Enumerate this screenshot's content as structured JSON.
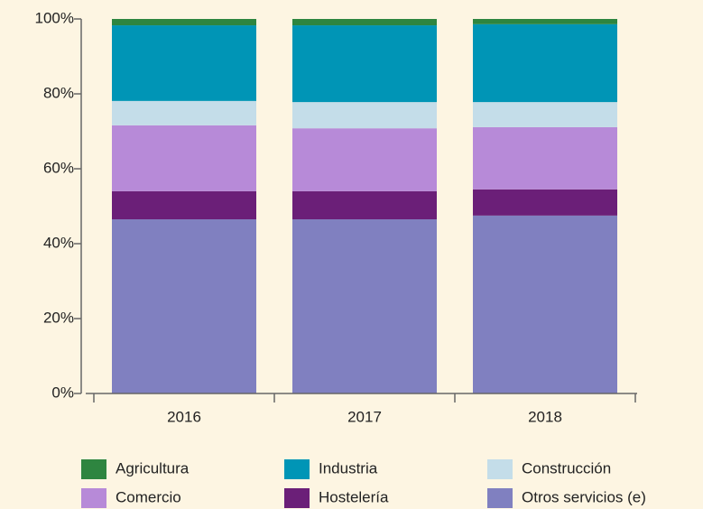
{
  "chart_data": {
    "type": "stacked_bar",
    "categories": [
      "2016",
      "2017",
      "2018"
    ],
    "series": [
      {
        "name": "Agricultura",
        "color": "#2e8540",
        "values": [
          1.7,
          1.7,
          1.4
        ]
      },
      {
        "name": "Industria",
        "color": "#0095b6",
        "values": [
          20.2,
          20.5,
          20.8
        ]
      },
      {
        "name": "Construcción",
        "color": "#c4dde9",
        "values": [
          6.5,
          7.0,
          6.7
        ]
      },
      {
        "name": "Comercio",
        "color": "#b78ad8",
        "values": [
          17.6,
          16.8,
          16.6
        ]
      },
      {
        "name": "Hostelería",
        "color": "#6b1f78",
        "values": [
          7.5,
          7.5,
          7.0
        ]
      },
      {
        "name": "Otros servicios (e)",
        "color": "#8080c0",
        "values": [
          46.5,
          46.5,
          47.5
        ]
      }
    ],
    "ylim": [
      0,
      100
    ],
    "yticks": [
      {
        "value": 0,
        "label": "0%"
      },
      {
        "value": 20,
        "label": "20%"
      },
      {
        "value": 40,
        "label": "40%"
      },
      {
        "value": 60,
        "label": "60%"
      },
      {
        "value": 80,
        "label": "80%"
      },
      {
        "value": 100,
        "label": "100%"
      }
    ],
    "grid": false,
    "legend": "bottom"
  }
}
